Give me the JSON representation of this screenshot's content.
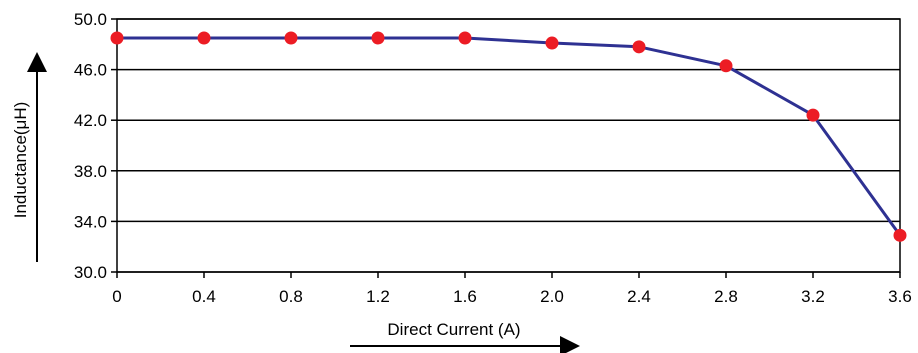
{
  "chart_data": {
    "type": "line",
    "xlabel": "Direct Current (A)",
    "ylabel": "Inductance(μH)",
    "x_tick_labels": [
      "0",
      "0.4",
      "0.8",
      "1.2",
      "1.6",
      "2.0",
      "2.4",
      "2.8",
      "3.2",
      "3.6"
    ],
    "y_tick_labels": [
      "30.0",
      "34.0",
      "38.0",
      "42.0",
      "46.0",
      "50.0"
    ],
    "x_ticks": [
      0,
      0.4,
      0.8,
      1.2,
      1.6,
      2.0,
      2.4,
      2.8,
      3.2,
      3.6
    ],
    "y_ticks": [
      30,
      34,
      38,
      42,
      46,
      50
    ],
    "xlim": [
      0,
      3.6
    ],
    "ylim": [
      30,
      50
    ],
    "grid": "horizontal",
    "series": [
      {
        "x": [
          0,
          0.4,
          0.8,
          1.2,
          1.6,
          2.0,
          2.4,
          2.8,
          3.2,
          3.6
        ],
        "y": [
          48.5,
          48.5,
          48.5,
          48.5,
          48.5,
          48.1,
          47.8,
          46.3,
          42.4,
          32.9
        ]
      }
    ],
    "colors": {
      "line": "#2e3192",
      "marker": "#ec1c24",
      "grid": "#000000"
    }
  }
}
